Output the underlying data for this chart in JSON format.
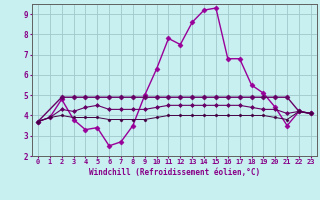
{
  "xlabel": "Windchill (Refroidissement éolien,°C)",
  "bg_color": "#c8f0f0",
  "grid_color": "#a0c8cc",
  "xlim": [
    -0.5,
    23.5
  ],
  "ylim": [
    2,
    9.5
  ],
  "yticks": [
    2,
    3,
    4,
    5,
    6,
    7,
    8,
    9
  ],
  "xticks": [
    0,
    1,
    2,
    3,
    4,
    5,
    6,
    7,
    8,
    9,
    10,
    11,
    12,
    13,
    14,
    15,
    16,
    17,
    18,
    19,
    20,
    21,
    22,
    23
  ],
  "series": [
    {
      "x": [
        0,
        1,
        2,
        3,
        4,
        5,
        6,
        7,
        8,
        9,
        10,
        11,
        12,
        13,
        14,
        15,
        16,
        17,
        18,
        19,
        20,
        21,
        22,
        23
      ],
      "y": [
        3.7,
        3.9,
        4.8,
        3.8,
        3.3,
        3.4,
        2.5,
        2.7,
        3.5,
        5.0,
        6.3,
        7.8,
        7.5,
        8.6,
        9.2,
        9.3,
        6.8,
        6.8,
        5.5,
        5.1,
        4.4,
        3.5,
        4.2,
        4.1
      ],
      "marker": "D",
      "markersize": 2.5,
      "linewidth": 1.0,
      "color": "#990099"
    },
    {
      "x": [
        0,
        2,
        3,
        4,
        5,
        6,
        7,
        8,
        9,
        10,
        11,
        12,
        13,
        14,
        15,
        16,
        17,
        18,
        19,
        20,
        21,
        22,
        23
      ],
      "y": [
        3.7,
        4.9,
        4.9,
        4.9,
        4.9,
        4.9,
        4.9,
        4.9,
        4.9,
        4.9,
        4.9,
        4.9,
        4.9,
        4.9,
        4.9,
        4.9,
        4.9,
        4.9,
        4.9,
        4.9,
        4.9,
        4.2,
        4.1
      ],
      "marker": "D",
      "markersize": 2.5,
      "linewidth": 1.0,
      "color": "#660066"
    },
    {
      "x": [
        0,
        1,
        2,
        3,
        4,
        5,
        6,
        7,
        8,
        9,
        10,
        11,
        12,
        13,
        14,
        15,
        16,
        17,
        18,
        19,
        20,
        21,
        22,
        23
      ],
      "y": [
        3.7,
        3.9,
        4.3,
        4.2,
        4.4,
        4.5,
        4.3,
        4.3,
        4.3,
        4.3,
        4.4,
        4.5,
        4.5,
        4.5,
        4.5,
        4.5,
        4.5,
        4.5,
        4.4,
        4.3,
        4.3,
        4.1,
        4.2,
        4.1
      ],
      "marker": "D",
      "markersize": 2.0,
      "linewidth": 0.8,
      "color": "#660066"
    },
    {
      "x": [
        0,
        1,
        2,
        3,
        4,
        5,
        6,
        7,
        8,
        9,
        10,
        11,
        12,
        13,
        14,
        15,
        16,
        17,
        18,
        19,
        20,
        21,
        22,
        23
      ],
      "y": [
        3.7,
        3.9,
        4.0,
        3.9,
        3.9,
        3.9,
        3.8,
        3.8,
        3.8,
        3.8,
        3.9,
        4.0,
        4.0,
        4.0,
        4.0,
        4.0,
        4.0,
        4.0,
        4.0,
        4.0,
        3.9,
        3.8,
        4.2,
        4.1
      ],
      "marker": "D",
      "markersize": 1.5,
      "linewidth": 0.7,
      "color": "#440044"
    }
  ]
}
